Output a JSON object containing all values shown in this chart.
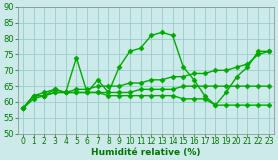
{
  "x": [
    0,
    1,
    2,
    3,
    4,
    5,
    6,
    7,
    8,
    9,
    10,
    11,
    12,
    13,
    14,
    15,
    16,
    17,
    18,
    19,
    20,
    21,
    22,
    23
  ],
  "series": [
    [
      58,
      62,
      62,
      64,
      63,
      74,
      63,
      67,
      63,
      71,
      76,
      77,
      81,
      82,
      81,
      71,
      67,
      62,
      59,
      63,
      68,
      71,
      76,
      76
    ],
    [
      58,
      62,
      63,
      64,
      63,
      64,
      64,
      65,
      65,
      65,
      66,
      66,
      67,
      67,
      68,
      68,
      69,
      69,
      70,
      70,
      71,
      72,
      75,
      76
    ],
    [
      58,
      61,
      62,
      63,
      63,
      63,
      63,
      63,
      63,
      63,
      63,
      64,
      64,
      64,
      64,
      65,
      65,
      65,
      65,
      65,
      65,
      65,
      65,
      65
    ],
    [
      58,
      62,
      62,
      63,
      63,
      63,
      63,
      63,
      62,
      62,
      62,
      62,
      62,
      62,
      62,
      61,
      61,
      61,
      59,
      59,
      59,
      59,
      59,
      59
    ]
  ],
  "line_color": "#00aa00",
  "bg_color": "#cceaea",
  "grid_color": "#99cccc",
  "xlabel": "Humidité relative (%)",
  "ylim": [
    50,
    90
  ],
  "xlim": [
    -0.5,
    23.5
  ],
  "yticks": [
    50,
    55,
    60,
    65,
    70,
    75,
    80,
    85,
    90
  ],
  "xticks": [
    0,
    1,
    2,
    3,
    4,
    5,
    6,
    7,
    8,
    9,
    10,
    11,
    12,
    13,
    14,
    15,
    16,
    17,
    18,
    19,
    20,
    21,
    22,
    23
  ],
  "marker": "D",
  "markersize": 2.5,
  "linewidth": 1.0,
  "xlabel_color": "#007700",
  "tick_color": "#007700",
  "tick_fontsize": 5.5,
  "ylabel_fontsize": 6,
  "xlabel_fontsize": 6.5
}
